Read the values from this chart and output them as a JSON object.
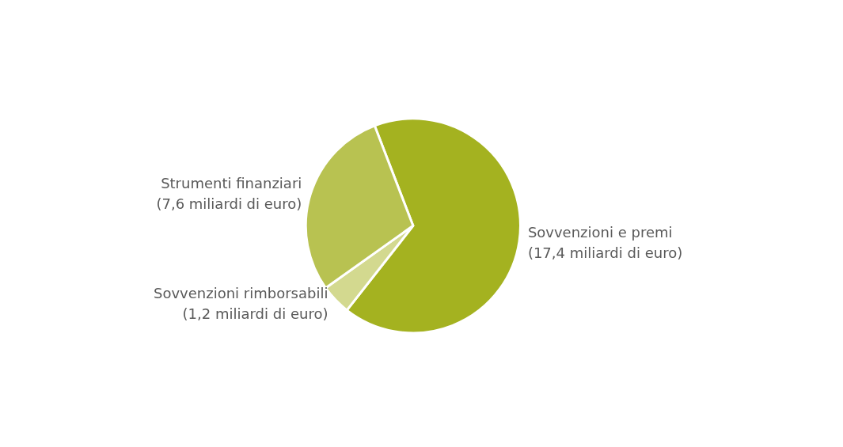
{
  "chart_data": {
    "type": "pie",
    "categories": [
      "Sovvenzioni e premi",
      "Sovvenzioni rimborsabili",
      "Strumenti finanziari"
    ],
    "values": [
      17.4,
      1.2,
      7.6
    ],
    "value_labels": [
      "(17,4 miliardi di euro)",
      "(1,2 miliardi di euro)",
      "(7,6 miliardi di euro)"
    ],
    "colors": [
      "#a4b220",
      "#d3d98f",
      "#b8c251"
    ]
  }
}
